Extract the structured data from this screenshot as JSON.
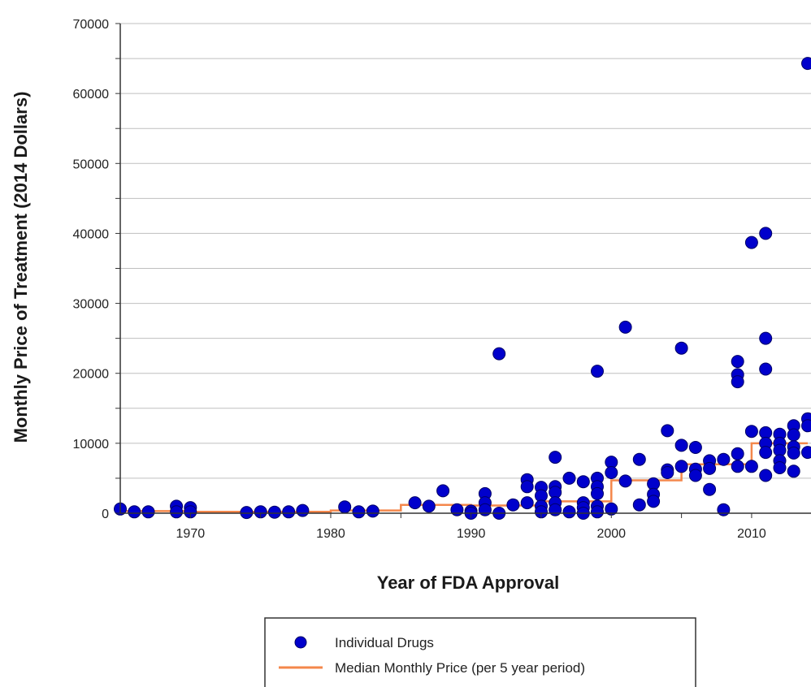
{
  "chart_data": {
    "type": "scatter",
    "xlabel": "Year of FDA Approval",
    "ylabel": "Monthly Price of Treatment (2014 Dollars)",
    "xlim": [
      1965,
      2014
    ],
    "ylim": [
      0,
      70000
    ],
    "x_ticks": [
      1970,
      1980,
      1990,
      2000,
      2010
    ],
    "y_ticks": [
      0,
      10000,
      20000,
      30000,
      40000,
      50000,
      60000,
      70000
    ],
    "grid": "horizontal",
    "legend_position": "bottom",
    "colors": {
      "points": "#0000cc",
      "point_edge": "#000066",
      "median_line": "#f4874b",
      "grid": "#bfbfbf"
    },
    "series": [
      {
        "name": "Individual Drugs",
        "kind": "scatter",
        "points": [
          [
            1965,
            600
          ],
          [
            1966,
            200
          ],
          [
            1967,
            200
          ],
          [
            1969,
            1000
          ],
          [
            1969,
            200
          ],
          [
            1970,
            800
          ],
          [
            1970,
            200
          ],
          [
            1974,
            100
          ],
          [
            1975,
            200
          ],
          [
            1976,
            150
          ],
          [
            1977,
            200
          ],
          [
            1978,
            400
          ],
          [
            1981,
            900
          ],
          [
            1982,
            200
          ],
          [
            1983,
            300
          ],
          [
            1986,
            1500
          ],
          [
            1987,
            1000
          ],
          [
            1988,
            3200
          ],
          [
            1989,
            500
          ],
          [
            1990,
            300
          ],
          [
            1990,
            0
          ],
          [
            1991,
            2800
          ],
          [
            1991,
            1500
          ],
          [
            1991,
            500
          ],
          [
            1992,
            22800
          ],
          [
            1992,
            0
          ],
          [
            1993,
            1200
          ],
          [
            1994,
            4800
          ],
          [
            1994,
            3800
          ],
          [
            1994,
            1500
          ],
          [
            1995,
            3700
          ],
          [
            1995,
            2500
          ],
          [
            1995,
            1000
          ],
          [
            1995,
            200
          ],
          [
            1996,
            8000
          ],
          [
            1996,
            3800
          ],
          [
            1996,
            3000
          ],
          [
            1996,
            1500
          ],
          [
            1996,
            500
          ],
          [
            1997,
            5000
          ],
          [
            1997,
            200
          ],
          [
            1998,
            4500
          ],
          [
            1998,
            1500
          ],
          [
            1998,
            800
          ],
          [
            1998,
            0
          ],
          [
            1999,
            20300
          ],
          [
            1999,
            5000
          ],
          [
            1999,
            3800
          ],
          [
            1999,
            2800
          ],
          [
            1999,
            1000
          ],
          [
            1999,
            200
          ],
          [
            2000,
            7300
          ],
          [
            2000,
            5800
          ],
          [
            2000,
            600
          ],
          [
            2001,
            26600
          ],
          [
            2001,
            4600
          ],
          [
            2002,
            7700
          ],
          [
            2002,
            1200
          ],
          [
            2003,
            4200
          ],
          [
            2003,
            2700
          ],
          [
            2003,
            1700
          ],
          [
            2004,
            11800
          ],
          [
            2004,
            6200
          ],
          [
            2004,
            5800
          ],
          [
            2005,
            23600
          ],
          [
            2005,
            9700
          ],
          [
            2005,
            6700
          ],
          [
            2006,
            9400
          ],
          [
            2006,
            6300
          ],
          [
            2006,
            5400
          ],
          [
            2007,
            7500
          ],
          [
            2007,
            6400
          ],
          [
            2007,
            3400
          ],
          [
            2008,
            7700
          ],
          [
            2008,
            500
          ],
          [
            2009,
            21700
          ],
          [
            2009,
            19800
          ],
          [
            2009,
            18800
          ],
          [
            2009,
            8500
          ],
          [
            2009,
            6700
          ],
          [
            2010,
            38700
          ],
          [
            2010,
            11700
          ],
          [
            2010,
            6700
          ],
          [
            2011,
            40000
          ],
          [
            2011,
            25000
          ],
          [
            2011,
            20600
          ],
          [
            2011,
            11500
          ],
          [
            2011,
            10000
          ],
          [
            2011,
            8700
          ],
          [
            2011,
            5400
          ],
          [
            2012,
            11300
          ],
          [
            2012,
            10000
          ],
          [
            2012,
            9000
          ],
          [
            2012,
            7500
          ],
          [
            2012,
            6500
          ],
          [
            2013,
            12500
          ],
          [
            2013,
            11200
          ],
          [
            2013,
            9500
          ],
          [
            2013,
            8600
          ],
          [
            2013,
            6000
          ],
          [
            2014,
            64300
          ],
          [
            2014,
            13500
          ],
          [
            2014,
            12500
          ],
          [
            2014,
            8700
          ]
        ]
      },
      {
        "name": "Median Monthly Price (per 5 year period)",
        "kind": "step",
        "points": [
          [
            1965,
            300
          ],
          [
            1970,
            300
          ],
          [
            1970,
            200
          ],
          [
            1980,
            200
          ],
          [
            1980,
            400
          ],
          [
            1985,
            400
          ],
          [
            1985,
            1200
          ],
          [
            1990,
            1200
          ],
          [
            1990,
            1100
          ],
          [
            1995,
            1100
          ],
          [
            1995,
            1700
          ],
          [
            2000,
            1700
          ],
          [
            2000,
            4700
          ],
          [
            2005,
            4700
          ],
          [
            2005,
            7000
          ],
          [
            2010,
            7000
          ],
          [
            2010,
            10000
          ],
          [
            2014,
            10000
          ]
        ]
      }
    ]
  }
}
